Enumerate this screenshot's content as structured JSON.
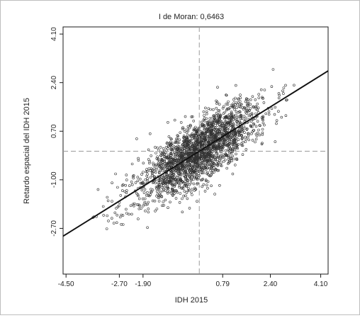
{
  "chart_data": {
    "type": "scatter",
    "title": "I de Moran: 0,6463",
    "xlabel": "IDH 2015",
    "ylabel": "Retardo espacial del IDH 2015",
    "xlim": [
      -4.6,
      4.35
    ],
    "ylim": [
      -4.3,
      4.35
    ],
    "x_ticks": [
      "-4.50",
      "-2.70",
      "-1.90",
      "0.79",
      "2.40",
      "4.10"
    ],
    "y_ticks": [
      "4.10",
      "2.40",
      "0.70",
      "-1.00",
      "-2.70"
    ],
    "reference_lines": {
      "x": 0,
      "y": 0
    },
    "regression": {
      "slope": 0.6463,
      "intercept": 0
    },
    "point_count": 2200,
    "point_spread": {
      "x_sd": 0.95,
      "y_residual_sd": 0.55
    },
    "marker": "open circle",
    "grid": false
  }
}
